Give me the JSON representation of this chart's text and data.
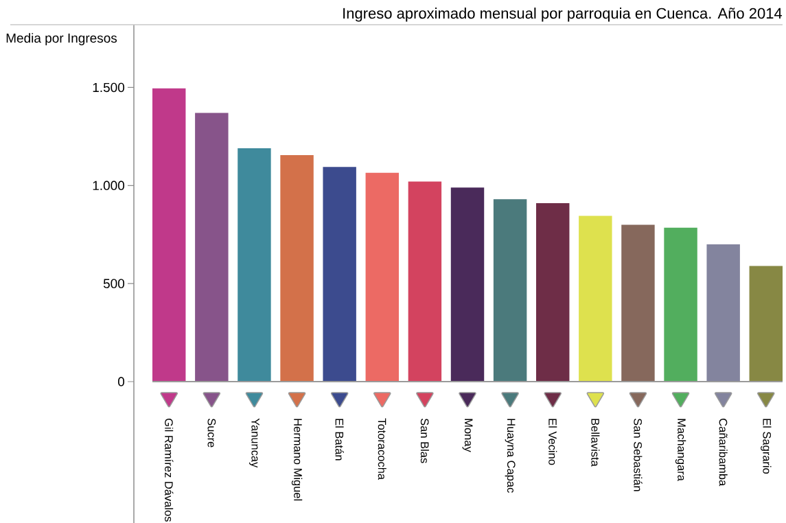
{
  "chart_data": {
    "type": "bar",
    "title": "Ingreso aproximado mensual por parroquia en Cuenca. Año 2014",
    "ylabel": "Media por Ingresos",
    "categories": [
      "Gil Ramírez Dávalos",
      "Sucre",
      "Yanuncay",
      "Hermano Miguel",
      "El Batán",
      "Totoracocha",
      "San Blas",
      "Monay",
      "Huayna Capac",
      "El Vecino",
      "Bellavista",
      "San Sebastián",
      "Machangara",
      "Cañaribamba",
      "El Sagrario"
    ],
    "values": [
      1495,
      1370,
      1190,
      1155,
      1095,
      1065,
      1020,
      990,
      930,
      910,
      845,
      800,
      785,
      700,
      590
    ],
    "colors": [
      "#c0398a",
      "#87548a",
      "#3f8a9c",
      "#d3714a",
      "#3c4b8e",
      "#ec6a64",
      "#d3435f",
      "#4a2a5a",
      "#4b7a7c",
      "#6e2d47",
      "#dee14e",
      "#86685c",
      "#52ae5e",
      "#83849e",
      "#878844"
    ],
    "ylim": [
      0,
      1820
    ],
    "yticks": [
      0,
      500,
      {
        "value": 1000,
        "label": "1.000"
      },
      {
        "value": 1500,
        "label": "1.500"
      }
    ]
  }
}
